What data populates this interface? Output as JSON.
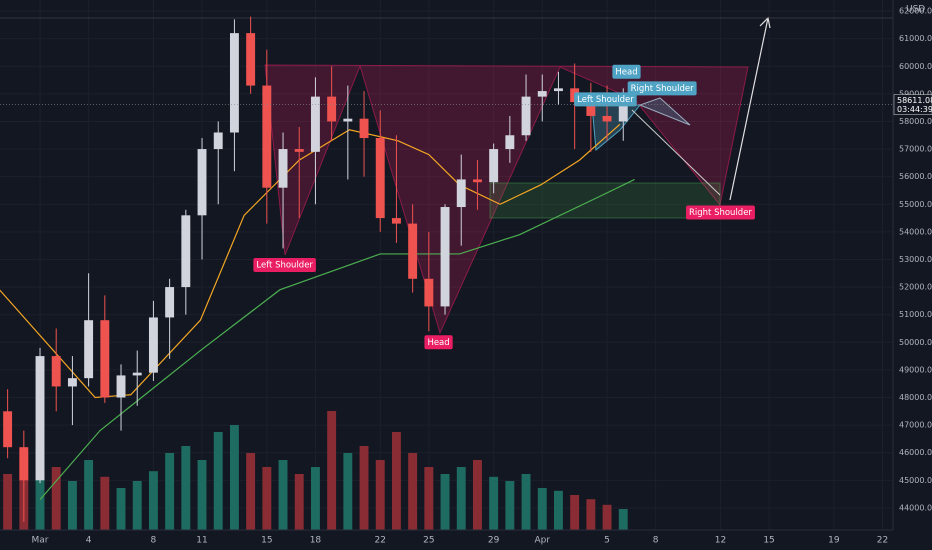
{
  "chart_data": {
    "type": "candlestick",
    "currency": "USD",
    "last_price": 58611.08,
    "countdown": "03:44:39",
    "x": [
      -2,
      -1,
      0,
      1,
      2,
      3,
      4,
      5,
      6,
      7,
      8,
      9,
      10,
      11,
      12,
      13,
      14,
      15,
      16,
      17,
      18,
      19,
      20,
      21,
      22,
      23,
      24,
      25,
      26,
      27,
      28,
      29,
      30,
      31,
      32,
      33,
      34,
      35,
      36
    ],
    "open": [
      47500,
      46200,
      45000,
      49500,
      48400,
      48700,
      50800,
      48000,
      48800,
      48900,
      50900,
      52000,
      54600,
      57000,
      57600,
      61200,
      59300,
      55600,
      57000,
      56900,
      58900,
      58000,
      58100,
      57400,
      54500,
      54300,
      52300,
      51300,
      54900,
      55900,
      55800,
      57000,
      57500,
      58900,
      59100,
      59200,
      58700,
      58200,
      58000
    ],
    "high": [
      48300,
      46800,
      49800,
      50500,
      49500,
      52500,
      51700,
      49200,
      49700,
      51500,
      52300,
      54800,
      57400,
      58000,
      61700,
      61800,
      60600,
      57600,
      57800,
      59600,
      60000,
      59300,
      59100,
      58400,
      57500,
      55000,
      54000,
      55000,
      56800,
      56600,
      57200,
      58200,
      59700,
      59700,
      59800,
      60100,
      59400,
      59300,
      59200
    ],
    "low": [
      45800,
      43500,
      44900,
      47500,
      47000,
      48400,
      47800,
      46800,
      47700,
      48600,
      49400,
      51000,
      53000,
      55000,
      56200,
      59000,
      54300,
      53400,
      54500,
      55000,
      57300,
      55900,
      56000,
      54000,
      53600,
      51800,
      50400,
      51000,
      53500,
      54800,
      55400,
      56500,
      57300,
      58000,
      58600,
      57000,
      56900,
      57300,
      57300
    ],
    "close": [
      46200,
      45000,
      49500,
      48400,
      48700,
      50800,
      48000,
      48800,
      48900,
      50900,
      52000,
      54600,
      57000,
      57600,
      61200,
      59300,
      55600,
      57000,
      56900,
      58900,
      58000,
      58100,
      57400,
      54500,
      54300,
      52300,
      51300,
      54900,
      55900,
      55800,
      57000,
      57500,
      58900,
      59100,
      59200,
      58700,
      58200,
      58000,
      58611.08
    ],
    "up_color": "#d1d4dc",
    "down_color": "#ef5350",
    "volume": [
      40,
      55,
      60,
      45,
      35,
      50,
      38,
      30,
      35,
      42,
      55,
      60,
      50,
      70,
      75,
      55,
      45,
      50,
      40,
      45,
      85,
      55,
      60,
      50,
      70,
      55,
      45,
      40,
      45,
      50,
      38,
      35,
      40,
      30,
      28,
      25,
      22,
      18,
      15
    ],
    "volume_lim": [
      0,
      100
    ],
    "volume_up_color": "#1e6b62",
    "volume_down_color": "#8a2c33",
    "moving_averages": [
      {
        "color": "#f5a623",
        "x": [
          -2.5,
          3.4,
          5.6,
          9.9,
          12.6,
          16,
          19.1,
          22.1,
          24,
          25.9,
          28.4,
          30.9,
          33.3,
          35.8
        ],
        "values": [
          51900,
          48000,
          48100,
          50800,
          54600,
          56600,
          57700,
          57300,
          56800,
          55700,
          55000,
          55700,
          56600,
          57900
        ]
      },
      {
        "color": "#4caf50",
        "x": [
          0,
          3.7,
          9.9,
          14.8,
          21,
          25.9,
          29.6,
          34.6,
          36.7
        ],
        "values": [
          44300,
          46800,
          49700,
          51900,
          53200,
          53200,
          53900,
          55300,
          55900
        ]
      }
    ],
    "annotations": [
      {
        "text": "Left Shoulder",
        "x": 15.1,
        "y": 52800,
        "color": "#e91e63"
      },
      {
        "text": "Head",
        "x": 24.6,
        "y": 50000,
        "color": "#e91e63"
      },
      {
        "text": "Right Shoulder",
        "x": 42,
        "y": 54700,
        "color": "#e91e63"
      },
      {
        "text": "Left Shoulder",
        "x": 34.9,
        "y": 58800,
        "color": "#4fa3c4"
      },
      {
        "text": "Head",
        "x": 36.2,
        "y": 59800,
        "color": "#4fa3c4"
      },
      {
        "text": "Right Shoulder",
        "x": 38.4,
        "y": 59200,
        "color": "#4fa3c4"
      }
    ],
    "xlim": [
      -2.47,
      52.65
    ],
    "xticks": [
      {
        "value": 0,
        "label": "Mar"
      },
      {
        "value": 3,
        "label": "4"
      },
      {
        "value": 7,
        "label": "8"
      },
      {
        "value": 10,
        "label": "11"
      },
      {
        "value": 14,
        "label": "15"
      },
      {
        "value": 17,
        "label": "18"
      },
      {
        "value": 21,
        "label": "22"
      },
      {
        "value": 24,
        "label": "25"
      },
      {
        "value": 28,
        "label": "29"
      },
      {
        "value": 31,
        "label": "Apr"
      },
      {
        "value": 35,
        "label": "5"
      },
      {
        "value": 38,
        "label": "8"
      },
      {
        "value": 42,
        "label": "12"
      },
      {
        "value": 45,
        "label": "15"
      },
      {
        "value": 49,
        "label": "19"
      },
      {
        "value": 52,
        "label": "22"
      }
    ],
    "ylim": [
      43200,
      62400
    ],
    "yticks": [
      {
        "value": 44000,
        "label": "44000.00"
      },
      {
        "value": 45000,
        "label": "45000.00"
      },
      {
        "value": 46000,
        "label": "46000.00"
      },
      {
        "value": 47000,
        "label": "47000.00"
      },
      {
        "value": 48000,
        "label": "48000.00"
      },
      {
        "value": 49000,
        "label": "49000.00"
      },
      {
        "value": 50000,
        "label": "50000.00"
      },
      {
        "value": 51000,
        "label": "51000.00"
      },
      {
        "value": 52000,
        "label": "52000.00"
      },
      {
        "value": 53000,
        "label": "53000.00"
      },
      {
        "value": 54000,
        "label": "54000.00"
      },
      {
        "value": 55000,
        "label": "55000.00"
      },
      {
        "value": 56000,
        "label": "56000.00"
      },
      {
        "value": 57000,
        "label": "57000.00"
      },
      {
        "value": 58000,
        "label": "58000.00"
      },
      {
        "value": 59000,
        "label": "59000.00"
      },
      {
        "value": 60000,
        "label": "60000.00"
      },
      {
        "value": 61000,
        "label": "61000.00"
      },
      {
        "value": 62000,
        "label": "62000.00"
      }
    ],
    "grid": true
  }
}
